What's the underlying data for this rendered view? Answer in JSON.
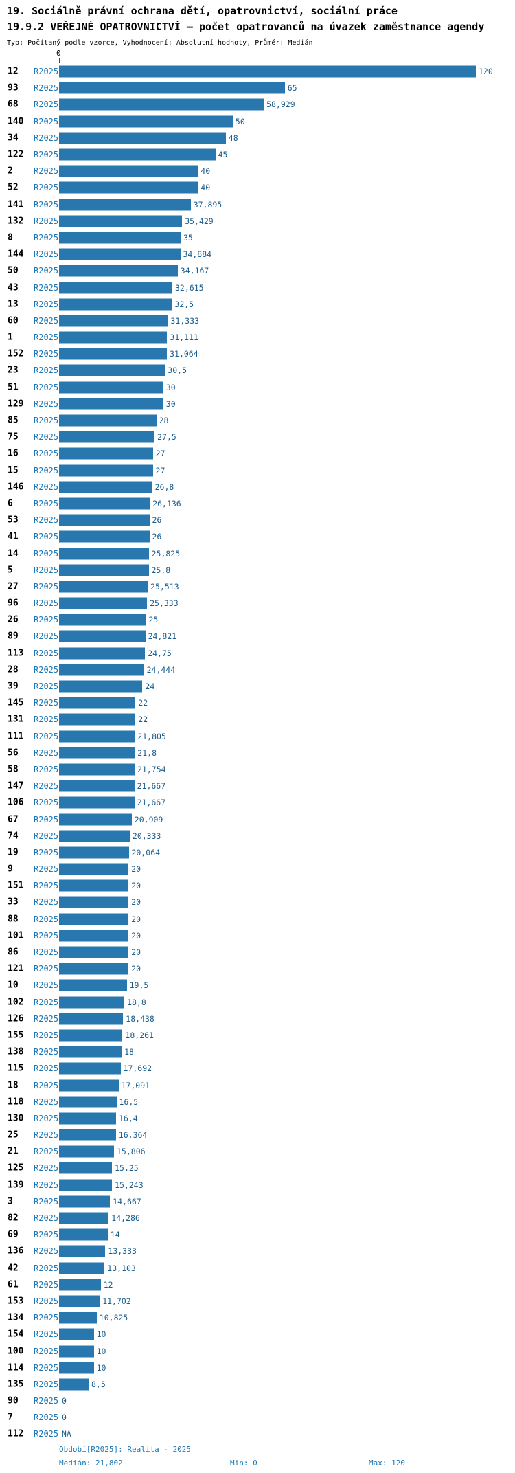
{
  "header": {
    "title_line1": "19. Sociálně právní ochrana dětí, opatrovnictví, sociální práce",
    "title_line2": "19.9.2 VEŘEJNÉ OPATROVNICTVÍ — počet opatrovanců na úvazek zaměstnance agendy",
    "meta_line": "Typ: Počítaný podle vzorce, Vyhodnocení: Absolutní hodnoty, Průměr: Medián"
  },
  "chart_data": {
    "type": "bar",
    "orientation": "horizontal",
    "title": "19.9.2 VEŘEJNÉ OPATROVNICTVÍ — počet opatrovanců na úvazek zaměstnance agendy",
    "x_axis": {
      "min": 0,
      "max": 120,
      "tick_labels": [
        "0"
      ]
    },
    "median": 21.802,
    "series_period": "R2025",
    "rows": [
      {
        "id": "12",
        "value": 120,
        "label": "120"
      },
      {
        "id": "93",
        "value": 65,
        "label": "65"
      },
      {
        "id": "68",
        "value": 58.929,
        "label": "58,929"
      },
      {
        "id": "140",
        "value": 50,
        "label": "50"
      },
      {
        "id": "34",
        "value": 48,
        "label": "48"
      },
      {
        "id": "122",
        "value": 45,
        "label": "45"
      },
      {
        "id": "2",
        "value": 40,
        "label": "40"
      },
      {
        "id": "52",
        "value": 40,
        "label": "40"
      },
      {
        "id": "141",
        "value": 37.895,
        "label": "37,895"
      },
      {
        "id": "132",
        "value": 35.429,
        "label": "35,429"
      },
      {
        "id": "8",
        "value": 35,
        "label": "35"
      },
      {
        "id": "144",
        "value": 34.884,
        "label": "34,884"
      },
      {
        "id": "50",
        "value": 34.167,
        "label": "34,167"
      },
      {
        "id": "43",
        "value": 32.615,
        "label": "32,615"
      },
      {
        "id": "13",
        "value": 32.5,
        "label": "32,5"
      },
      {
        "id": "60",
        "value": 31.333,
        "label": "31,333"
      },
      {
        "id": "1",
        "value": 31.111,
        "label": "31,111"
      },
      {
        "id": "152",
        "value": 31.064,
        "label": "31,064"
      },
      {
        "id": "23",
        "value": 30.5,
        "label": "30,5"
      },
      {
        "id": "51",
        "value": 30,
        "label": "30"
      },
      {
        "id": "129",
        "value": 30,
        "label": "30"
      },
      {
        "id": "85",
        "value": 28,
        "label": "28"
      },
      {
        "id": "75",
        "value": 27.5,
        "label": "27,5"
      },
      {
        "id": "16",
        "value": 27,
        "label": "27"
      },
      {
        "id": "15",
        "value": 27,
        "label": "27"
      },
      {
        "id": "146",
        "value": 26.8,
        "label": "26,8"
      },
      {
        "id": "6",
        "value": 26.136,
        "label": "26,136"
      },
      {
        "id": "53",
        "value": 26,
        "label": "26"
      },
      {
        "id": "41",
        "value": 26,
        "label": "26"
      },
      {
        "id": "14",
        "value": 25.825,
        "label": "25,825"
      },
      {
        "id": "5",
        "value": 25.8,
        "label": "25,8"
      },
      {
        "id": "27",
        "value": 25.513,
        "label": "25,513"
      },
      {
        "id": "96",
        "value": 25.333,
        "label": "25,333"
      },
      {
        "id": "26",
        "value": 25,
        "label": "25"
      },
      {
        "id": "89",
        "value": 24.821,
        "label": "24,821"
      },
      {
        "id": "113",
        "value": 24.75,
        "label": "24,75"
      },
      {
        "id": "28",
        "value": 24.444,
        "label": "24,444"
      },
      {
        "id": "39",
        "value": 24,
        "label": "24"
      },
      {
        "id": "145",
        "value": 22,
        "label": "22"
      },
      {
        "id": "131",
        "value": 22,
        "label": "22"
      },
      {
        "id": "111",
        "value": 21.805,
        "label": "21,805"
      },
      {
        "id": "56",
        "value": 21.8,
        "label": "21,8"
      },
      {
        "id": "58",
        "value": 21.754,
        "label": "21,754"
      },
      {
        "id": "147",
        "value": 21.667,
        "label": "21,667"
      },
      {
        "id": "106",
        "value": 21.667,
        "label": "21,667"
      },
      {
        "id": "67",
        "value": 20.909,
        "label": "20,909"
      },
      {
        "id": "74",
        "value": 20.333,
        "label": "20,333"
      },
      {
        "id": "19",
        "value": 20.064,
        "label": "20,064"
      },
      {
        "id": "9",
        "value": 20,
        "label": "20"
      },
      {
        "id": "151",
        "value": 20,
        "label": "20"
      },
      {
        "id": "33",
        "value": 20,
        "label": "20"
      },
      {
        "id": "88",
        "value": 20,
        "label": "20"
      },
      {
        "id": "101",
        "value": 20,
        "label": "20"
      },
      {
        "id": "86",
        "value": 20,
        "label": "20"
      },
      {
        "id": "121",
        "value": 20,
        "label": "20"
      },
      {
        "id": "10",
        "value": 19.5,
        "label": "19,5"
      },
      {
        "id": "102",
        "value": 18.8,
        "label": "18,8"
      },
      {
        "id": "126",
        "value": 18.438,
        "label": "18,438"
      },
      {
        "id": "155",
        "value": 18.261,
        "label": "18,261"
      },
      {
        "id": "138",
        "value": 18,
        "label": "18"
      },
      {
        "id": "115",
        "value": 17.692,
        "label": "17,692"
      },
      {
        "id": "18",
        "value": 17.091,
        "label": "17,091"
      },
      {
        "id": "118",
        "value": 16.5,
        "label": "16,5"
      },
      {
        "id": "130",
        "value": 16.4,
        "label": "16,4"
      },
      {
        "id": "25",
        "value": 16.364,
        "label": "16,364"
      },
      {
        "id": "21",
        "value": 15.806,
        "label": "15,806"
      },
      {
        "id": "125",
        "value": 15.25,
        "label": "15,25"
      },
      {
        "id": "139",
        "value": 15.243,
        "label": "15,243"
      },
      {
        "id": "3",
        "value": 14.667,
        "label": "14,667"
      },
      {
        "id": "82",
        "value": 14.286,
        "label": "14,286"
      },
      {
        "id": "69",
        "value": 14,
        "label": "14"
      },
      {
        "id": "136",
        "value": 13.333,
        "label": "13,333"
      },
      {
        "id": "42",
        "value": 13.103,
        "label": "13,103"
      },
      {
        "id": "61",
        "value": 12,
        "label": "12"
      },
      {
        "id": "153",
        "value": 11.702,
        "label": "11,702"
      },
      {
        "id": "134",
        "value": 10.825,
        "label": "10,825"
      },
      {
        "id": "154",
        "value": 10,
        "label": "10"
      },
      {
        "id": "100",
        "value": 10,
        "label": "10"
      },
      {
        "id": "114",
        "value": 10,
        "label": "10"
      },
      {
        "id": "135",
        "value": 8.5,
        "label": "8,5"
      },
      {
        "id": "90",
        "value": 0,
        "label": "0"
      },
      {
        "id": "7",
        "value": 0,
        "label": "0"
      },
      {
        "id": "112",
        "value": null,
        "label": "NA"
      }
    ]
  },
  "footer": {
    "period_info": "Období[R2025]: Realita - 2025",
    "median_label": "Medián: 21,802",
    "min_label": "Min: 0",
    "max_label": "Max: 120"
  },
  "colors": {
    "bar": "#2878af",
    "period_text": "#1f77b4",
    "value_text": "#1b5e8e",
    "footer_text": "#1f77b4",
    "median_line": "#aac7de"
  }
}
